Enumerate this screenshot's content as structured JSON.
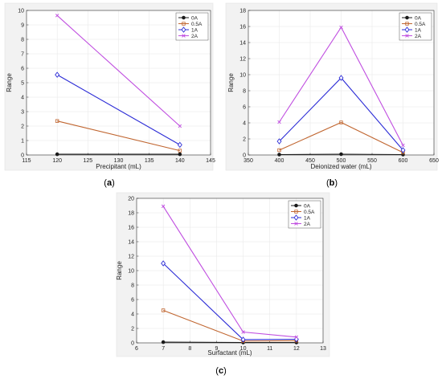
{
  "colors": {
    "0A": "#1a1a1a",
    "0.5A": "#c0652f",
    "1A": "#2b2bd6",
    "2A": "#c04ee0"
  },
  "chart_data": [
    {
      "type": "line",
      "caption_letter": "a",
      "xlabel": "Precipitant (mL)",
      "ylabel": "Range",
      "xlim": [
        115,
        145
      ],
      "ylim": [
        0,
        10
      ],
      "xticks": [
        115,
        120,
        125,
        130,
        135,
        140,
        145
      ],
      "yticks": [
        0,
        1,
        2,
        3,
        4,
        5,
        6,
        7,
        8,
        9,
        10
      ],
      "x": [
        120,
        140
      ],
      "legend_position": "top-right",
      "grid": true,
      "series": [
        {
          "name": "0A",
          "marker": "dot",
          "values": [
            0.05,
            0.05
          ]
        },
        {
          "name": "0.5A",
          "marker": "square",
          "values": [
            2.35,
            0.3
          ]
        },
        {
          "name": "1A",
          "marker": "diamond",
          "values": [
            5.55,
            0.7
          ]
        },
        {
          "name": "2A",
          "marker": "x",
          "values": [
            9.65,
            2.0
          ]
        }
      ]
    },
    {
      "type": "line",
      "caption_letter": "b",
      "xlabel": "Deionized water (mL)",
      "ylabel": "Range",
      "xlim": [
        350,
        650
      ],
      "ylim": [
        0,
        18
      ],
      "xticks": [
        350,
        400,
        450,
        500,
        550,
        600,
        650
      ],
      "yticks": [
        0,
        2,
        4,
        6,
        8,
        10,
        12,
        14,
        16,
        18
      ],
      "x": [
        400,
        500,
        600
      ],
      "legend_position": "top-right",
      "grid": true,
      "series": [
        {
          "name": "0A",
          "marker": "dot",
          "values": [
            0.05,
            0.1,
            0.05
          ]
        },
        {
          "name": "0.5A",
          "marker": "square",
          "values": [
            0.6,
            4.05,
            0.3
          ]
        },
        {
          "name": "1A",
          "marker": "diamond",
          "values": [
            1.7,
            9.6,
            0.6
          ]
        },
        {
          "name": "2A",
          "marker": "x",
          "values": [
            4.1,
            15.9,
            1.2
          ]
        }
      ]
    },
    {
      "type": "line",
      "caption_letter": "c",
      "xlabel": "Surfactant (mL)",
      "ylabel": "Range",
      "xlim": [
        6,
        13
      ],
      "ylim": [
        0,
        20
      ],
      "xticks": [
        6,
        7,
        8,
        9,
        10,
        11,
        12,
        13
      ],
      "yticks": [
        0,
        2,
        4,
        6,
        8,
        10,
        12,
        14,
        16,
        18,
        20
      ],
      "x": [
        7,
        10,
        12
      ],
      "legend_position": "top-right",
      "grid": true,
      "series": [
        {
          "name": "0A",
          "marker": "dot",
          "values": [
            0.1,
            0.05,
            0.05
          ]
        },
        {
          "name": "0.5A",
          "marker": "square",
          "values": [
            4.5,
            0.25,
            0.3
          ]
        },
        {
          "name": "1A",
          "marker": "diamond",
          "values": [
            11.0,
            0.45,
            0.5
          ]
        },
        {
          "name": "2A",
          "marker": "x",
          "values": [
            18.9,
            1.5,
            0.8
          ]
        }
      ]
    }
  ]
}
